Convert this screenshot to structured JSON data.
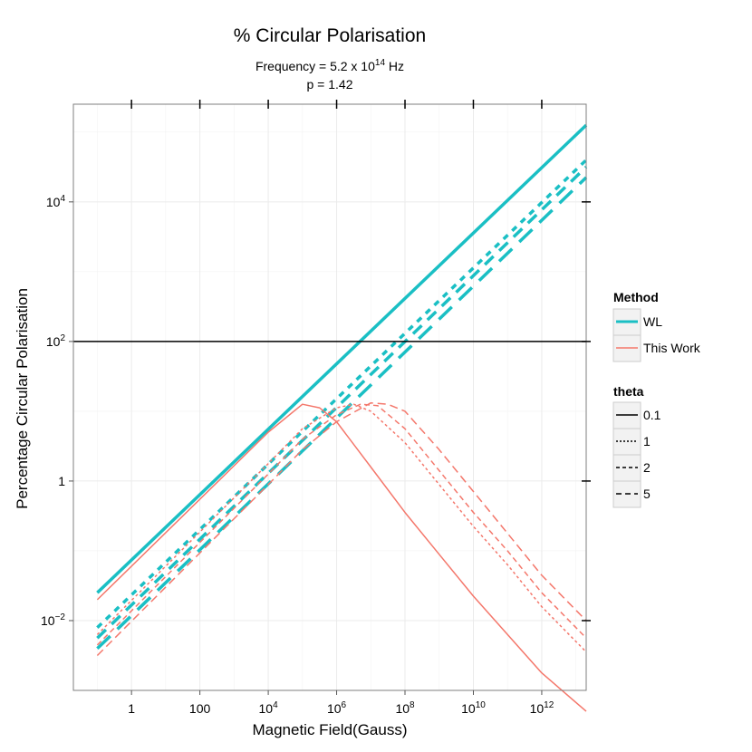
{
  "chart_data": {
    "type": "line",
    "title": "% Circular Polarisation",
    "subtitle_freq_prefix": "Frequency = 5.2 x 10",
    "subtitle_freq_exp": "14",
    "subtitle_freq_unit": " Hz",
    "subtitle_p": "p = 1.42",
    "xlabel": "Magnetic Field(Gauss)",
    "ylabel": "Percentage Circular Polarisation",
    "x_scale": "log10",
    "y_scale": "log10",
    "xlim_log10": [
      -1.7,
      13.3
    ],
    "ylim_log10": [
      -3.0,
      5.4
    ],
    "x_ticks": [
      {
        "log": 0,
        "base": "1",
        "exp": ""
      },
      {
        "log": 2,
        "base": "100",
        "exp": ""
      },
      {
        "log": 4,
        "base": "10",
        "exp": "4"
      },
      {
        "log": 6,
        "base": "10",
        "exp": "6"
      },
      {
        "log": 8,
        "base": "10",
        "exp": "8"
      },
      {
        "log": 10,
        "base": "10",
        "exp": "10"
      },
      {
        "log": 12,
        "base": "10",
        "exp": "12"
      }
    ],
    "y_ticks": [
      {
        "log": -2,
        "base": "10",
        "exp": "−2"
      },
      {
        "log": 0,
        "base": "1",
        "exp": ""
      },
      {
        "log": 2,
        "base": "10",
        "exp": "2"
      },
      {
        "log": 4,
        "base": "10",
        "exp": "4"
      }
    ],
    "hline_log10": 2,
    "series": [
      {
        "method": "WL",
        "theta": "0.1",
        "log_x": [
          -1,
          13.3
        ],
        "log_y": [
          -1.6,
          5.1
        ]
      },
      {
        "method": "WL",
        "theta": "1",
        "log_x": [
          -1,
          13.3
        ],
        "log_y": [
          -2.1,
          4.6
        ]
      },
      {
        "method": "WL",
        "theta": "2",
        "log_x": [
          -1,
          13.3
        ],
        "log_y": [
          -2.25,
          4.5
        ]
      },
      {
        "method": "WL",
        "theta": "5",
        "log_x": [
          -1,
          13.3
        ],
        "log_y": [
          -2.4,
          4.35
        ]
      },
      {
        "method": "This Work",
        "theta": "0.1",
        "log_x": [
          -1,
          4,
          5,
          5.5,
          6,
          7,
          8,
          9,
          10,
          11,
          12,
          13.3
        ],
        "log_y": [
          -1.7,
          0.7,
          1.1,
          1.05,
          0.85,
          0.2,
          -0.45,
          -1.05,
          -1.65,
          -2.2,
          -2.75,
          -3.3
        ]
      },
      {
        "method": "This Work",
        "theta": "1",
        "log_x": [
          -1,
          4,
          5,
          6,
          6.5,
          7,
          8,
          9,
          10,
          11,
          12,
          13.3
        ],
        "log_y": [
          -2.2,
          0.25,
          0.75,
          1.05,
          1.1,
          1.0,
          0.55,
          -0.05,
          -0.65,
          -1.2,
          -1.8,
          -2.45
        ]
      },
      {
        "method": "This Work",
        "theta": "2",
        "log_x": [
          -1,
          4,
          5,
          6,
          6.7,
          7.2,
          8,
          9,
          10,
          11,
          12,
          13.3
        ],
        "log_y": [
          -2.35,
          0.1,
          0.6,
          0.95,
          1.1,
          1.08,
          0.75,
          0.15,
          -0.45,
          -1.0,
          -1.6,
          -2.25
        ]
      },
      {
        "method": "This Work",
        "theta": "5",
        "log_x": [
          -1,
          4,
          5,
          6,
          7,
          7.5,
          8,
          9,
          10,
          11,
          12,
          13.3
        ],
        "log_y": [
          -2.5,
          -0.05,
          0.45,
          0.85,
          1.12,
          1.1,
          1.0,
          0.45,
          -0.15,
          -0.75,
          -1.35,
          -2.0
        ]
      }
    ],
    "method_colors": {
      "WL": "#1ABFC4",
      "This Work": "#F4776B"
    },
    "legend": {
      "method_title": "Method",
      "methods": [
        "WL",
        "This Work"
      ],
      "theta_title": "theta",
      "thetas": [
        "0.1",
        "1",
        "2",
        "5"
      ]
    }
  }
}
